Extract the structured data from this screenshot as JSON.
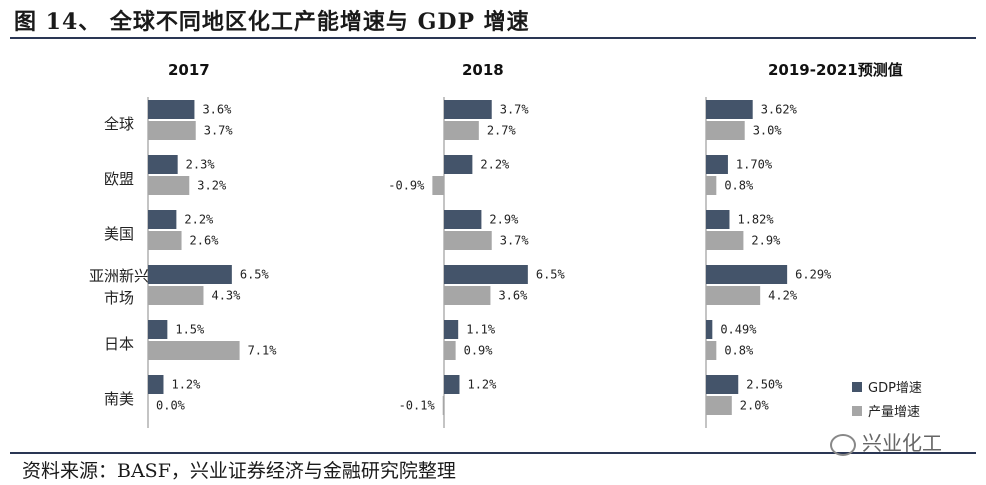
{
  "title": "图 14、 全球不同地区化工产能增速与 GDP 增速",
  "source": "资料来源：BASF，兴业证券经济与金融研究院整理",
  "watermark": "兴业化工",
  "colors": {
    "gdp": "#44546a",
    "prod": "#a6a6a6",
    "rule": "#2a3654"
  },
  "chart_data": {
    "type": "bar",
    "orientation": "horizontal",
    "categories": [
      "全球",
      "欧盟",
      "美国",
      [
        "亚洲新兴",
        "市场"
      ],
      "日本",
      "南美"
    ],
    "legend": {
      "position": "bottom-right",
      "entries": [
        "GDP增速",
        "产量增速"
      ]
    },
    "panels": [
      {
        "title": "2017",
        "series": [
          {
            "name": "GDP增速",
            "values": [
              3.6,
              2.3,
              2.2,
              6.5,
              1.5,
              1.2
            ],
            "labels": [
              "3.6%",
              "2.3%",
              "2.2%",
              "6.5%",
              "1.5%",
              "1.2%"
            ]
          },
          {
            "name": "产量增速",
            "values": [
              3.7,
              3.2,
              2.6,
              4.3,
              7.1,
              0.0
            ],
            "labels": [
              "3.7%",
              "3.2%",
              "2.6%",
              "4.3%",
              "7.1%",
              "0.0%"
            ]
          }
        ]
      },
      {
        "title": "2018",
        "series": [
          {
            "name": "GDP增速",
            "values": [
              3.7,
              2.2,
              2.9,
              6.5,
              1.1,
              1.2
            ],
            "labels": [
              "3.7%",
              "2.2%",
              "2.9%",
              "6.5%",
              "1.1%",
              "1.2%"
            ]
          },
          {
            "name": "产量增速",
            "values": [
              2.7,
              -0.9,
              3.7,
              3.6,
              0.9,
              -0.1
            ],
            "labels": [
              "2.7%",
              "-0.9%",
              "3.7%",
              "3.6%",
              "0.9%",
              "-0.1%"
            ]
          }
        ]
      },
      {
        "title": "2019-2021预测值",
        "series": [
          {
            "name": "GDP增速",
            "values": [
              3.62,
              1.7,
              1.82,
              6.29,
              0.49,
              2.5
            ],
            "labels": [
              "3.62%",
              "1.70%",
              "1.82%",
              "6.29%",
              "0.49%",
              "2.50%"
            ]
          },
          {
            "name": "产量增速",
            "values": [
              3.0,
              0.8,
              2.9,
              4.2,
              0.8,
              2.0
            ],
            "labels": [
              "3.0%",
              "0.8%",
              "2.9%",
              "4.2%",
              "0.8%",
              "2.0%"
            ]
          }
        ]
      }
    ]
  }
}
